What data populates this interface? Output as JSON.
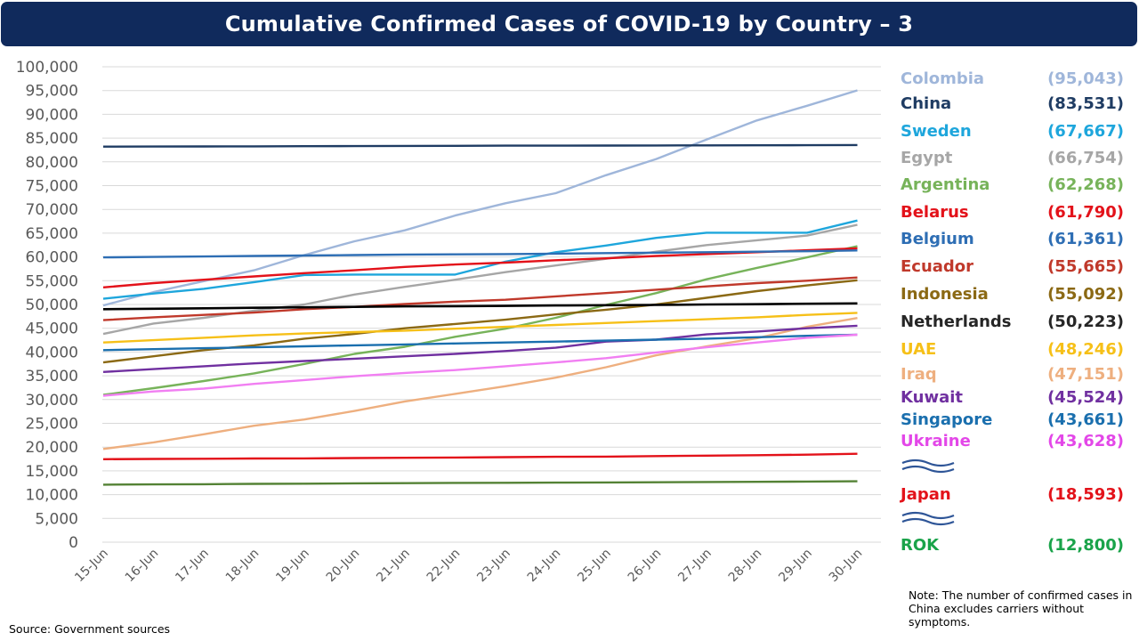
{
  "title": "Cumulative Confirmed Cases of COVID-19 by Country – 3",
  "source": "Source: Government  sources",
  "note": "Note: The number of confirmed cases in China excludes carriers without symptoms.",
  "chart_data": {
    "type": "line",
    "title": "Cumulative Confirmed Cases of COVID-19 by Country – 3",
    "xlabel": "",
    "ylabel": "",
    "ylim": [
      0,
      100000
    ],
    "ytick_step": 5000,
    "ytick_labels": [
      "0",
      "5,000",
      "10,000",
      "15,000",
      "20,000",
      "25,000",
      "30,000",
      "35,000",
      "40,000",
      "45,000",
      "50,000",
      "55,000",
      "60,000",
      "65,000",
      "70,000",
      "75,000",
      "80,000",
      "85,000",
      "90,000",
      "95,000",
      "100,000"
    ],
    "grid": true,
    "legend_position": "right",
    "categories": [
      "15-Jun",
      "16-Jun",
      "17-Jun",
      "18-Jun",
      "19-Jun",
      "20-Jun",
      "21-Jun",
      "22-Jun",
      "23-Jun",
      "24-Jun",
      "25-Jun",
      "26-Jun",
      "27-Jun",
      "28-Jun",
      "29-Jun",
      "30-Jun"
    ],
    "series": [
      {
        "name": "Colombia",
        "label": "(95,043)",
        "color": "#9fb6da",
        "values": [
          49800,
          52600,
          54900,
          57200,
          60400,
          63300,
          65600,
          68700,
          71300,
          73400,
          77200,
          80600,
          84700,
          88700,
          91800,
          95043
        ]
      },
      {
        "name": "China",
        "label": "(83,531)",
        "color": "#1f3c63",
        "values": [
          83200,
          83220,
          83240,
          83260,
          83290,
          83320,
          83350,
          83380,
          83400,
          83410,
          83430,
          83450,
          83470,
          83490,
          83510,
          83531
        ]
      },
      {
        "name": "Sweden",
        "label": "(67,667)",
        "color": "#1ea6dc",
        "values": [
          51200,
          52300,
          53300,
          54700,
          56200,
          56300,
          56300,
          56300,
          59000,
          61000,
          62400,
          64000,
          65100,
          65100,
          65100,
          67667
        ]
      },
      {
        "name": "Egypt",
        "label": "(66,754)",
        "color": "#a6a6a6",
        "values": [
          43800,
          46000,
          47200,
          48700,
          50000,
          52100,
          53700,
          55200,
          56800,
          58200,
          59600,
          61100,
          62500,
          63500,
          64500,
          66754
        ]
      },
      {
        "name": "Argentina",
        "label": "(62,268)",
        "color": "#77b35a",
        "values": [
          31000,
          32400,
          33900,
          35500,
          37500,
          39600,
          41100,
          43200,
          44900,
          47200,
          49900,
          52400,
          55300,
          57700,
          59900,
          62268
        ]
      },
      {
        "name": "Belarus",
        "label": "(61,790)",
        "color": "#e3121a",
        "values": [
          53600,
          54500,
          55200,
          55900,
          56600,
          57200,
          57900,
          58400,
          58800,
          59300,
          59700,
          60200,
          60600,
          61000,
          61400,
          61790
        ]
      },
      {
        "name": "Belgium",
        "label": "(61,361)",
        "color": "#2e6eb4",
        "values": [
          59900,
          60000,
          60100,
          60200,
          60300,
          60400,
          60500,
          60550,
          60600,
          60700,
          60800,
          60900,
          61000,
          61100,
          61200,
          61361
        ]
      },
      {
        "name": "Ecuador",
        "label": "(55,665)",
        "color": "#c0392b",
        "values": [
          46700,
          47300,
          47800,
          48300,
          49000,
          49500,
          50100,
          50600,
          51000,
          51700,
          52400,
          53100,
          53800,
          54500,
          55000,
          55665
        ]
      },
      {
        "name": "Indonesia",
        "label": "(55,092)",
        "color": "#8b6914",
        "values": [
          37800,
          39100,
          40400,
          41400,
          42800,
          43800,
          45000,
          45900,
          46800,
          47900,
          48900,
          50000,
          51400,
          52800,
          54000,
          55092
        ]
      },
      {
        "name": "Netherlands",
        "label": "(50,223)",
        "color": "#000000",
        "values": [
          49000,
          49100,
          49200,
          49300,
          49400,
          49500,
          49600,
          49650,
          49700,
          49800,
          49850,
          49900,
          50000,
          50050,
          50150,
          50223
        ]
      },
      {
        "name": "UAE",
        "label": "(48,246)",
        "color": "#f6c018",
        "values": [
          42000,
          42500,
          43000,
          43500,
          43900,
          44200,
          44500,
          44900,
          45300,
          45700,
          46100,
          46500,
          46900,
          47300,
          47800,
          48246
        ]
      },
      {
        "name": "Iraq",
        "label": "(47,151)",
        "color": "#eeaf7f",
        "values": [
          19600,
          21000,
          22700,
          24500,
          25800,
          27600,
          29600,
          31200,
          32800,
          34600,
          36800,
          39300,
          41200,
          42900,
          45300,
          47151
        ]
      },
      {
        "name": "Kuwait",
        "label": "(45,524)",
        "color": "#7030a0",
        "values": [
          35800,
          36400,
          37000,
          37600,
          38100,
          38600,
          39100,
          39600,
          40200,
          40900,
          42200,
          42600,
          43700,
          44300,
          45000,
          45524
        ]
      },
      {
        "name": "Singapore",
        "label": "(43,661)",
        "color": "#1a6fae",
        "values": [
          40400,
          40600,
          40800,
          41000,
          41200,
          41400,
          41600,
          41800,
          42000,
          42200,
          42400,
          42600,
          42800,
          43100,
          43400,
          43661
        ]
      },
      {
        "name": "Ukraine",
        "label": "(43,628)",
        "color": "#f17ff2",
        "values": [
          30800,
          31700,
          32300,
          33300,
          34100,
          34900,
          35600,
          36200,
          37000,
          37800,
          38700,
          39900,
          41000,
          42000,
          43000,
          43628
        ]
      },
      {
        "name": "Japan",
        "label": "(18,593)",
        "color": "#e3121a",
        "values": [
          17450,
          17500,
          17550,
          17600,
          17630,
          17700,
          17750,
          17800,
          17880,
          17950,
          18000,
          18110,
          18200,
          18300,
          18400,
          18593
        ]
      },
      {
        "name": "ROK",
        "label": "(12,800)",
        "color": "#548235",
        "values": [
          12100,
          12150,
          12200,
          12260,
          12310,
          12370,
          12420,
          12480,
          12500,
          12530,
          12570,
          12600,
          12650,
          12700,
          12750,
          12800
        ]
      }
    ]
  },
  "legend_colors": {
    "Colombia": "#9fb6da",
    "China": "#1f3c63",
    "Sweden": "#1ea6dc",
    "Egypt": "#a6a6a6",
    "Argentina": "#77b35a",
    "Belarus": "#e3121a",
    "Belgium": "#2e6eb4",
    "Ecuador": "#c0392b",
    "Indonesia": "#8b6914",
    "Netherlands": "#262626",
    "UAE": "#f6c018",
    "Iraq": "#eeaf7f",
    "Kuwait": "#7030a0",
    "Singapore": "#1a6fae",
    "Ukraine": "#e347e8",
    "Japan": "#e3121a",
    "ROK": "#1aa34a"
  },
  "break_icon": "wavy-break-icon"
}
